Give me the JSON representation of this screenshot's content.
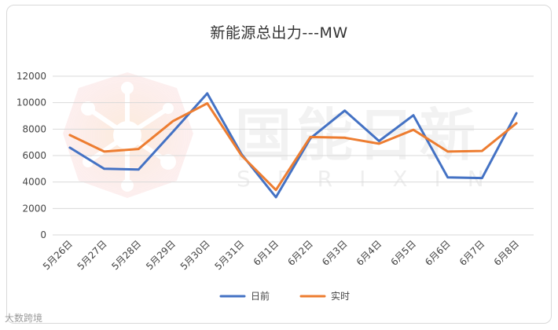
{
  "source_label": "大数跨境",
  "watermark": {
    "main": "国能日新",
    "sub": "SPRIXIN"
  },
  "chart_data": {
    "type": "line",
    "title": "新能源总出力---MW",
    "categories": [
      "5月26日",
      "5月27日",
      "5月28日",
      "5月29日",
      "5月30日",
      "5月31日",
      "6月1日",
      "6月2日",
      "6月3日",
      "6月4日",
      "6月5日",
      "6月6日",
      "6月7日",
      "6月8日"
    ],
    "series": [
      {
        "name": "日前",
        "color": "#4472c4",
        "values": [
          6600,
          5000,
          4950,
          7800,
          10700,
          6100,
          2850,
          7300,
          9400,
          7100,
          9050,
          4350,
          4300,
          9200
        ]
      },
      {
        "name": "实时",
        "color": "#ed7d31",
        "values": [
          7550,
          6300,
          6500,
          8600,
          9950,
          6000,
          3400,
          7400,
          7350,
          6900,
          7950,
          6300,
          6350,
          8450
        ]
      }
    ],
    "yticks": [
      "0",
      "2000",
      "4000",
      "6000",
      "8000",
      "10000",
      "12000"
    ],
    "ylim": [
      0,
      12000
    ],
    "grid": true,
    "legend": "bottom"
  }
}
